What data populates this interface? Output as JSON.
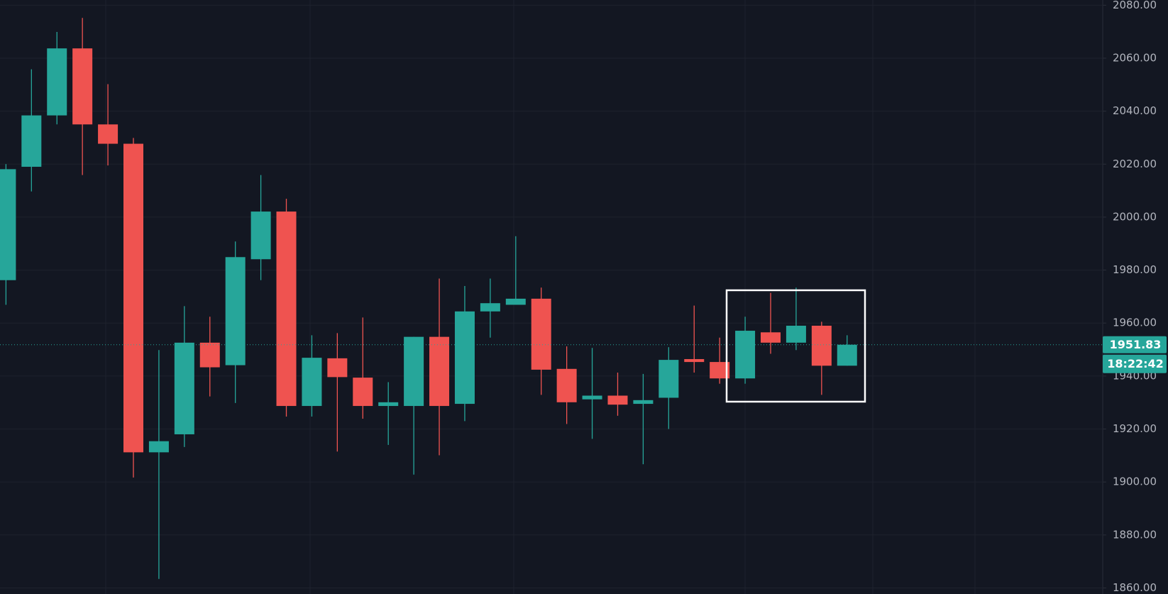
{
  "chart_data": {
    "type": "candlestick",
    "open": [
      1976.2,
      2019.0,
      2038.4,
      2063.7,
      2035.0,
      2027.7,
      1911.2,
      1918.0,
      1952.6,
      1944.1,
      1984.1,
      2002.1,
      1928.7,
      1946.7,
      1939.4,
      1928.7,
      1928.7,
      1954.8,
      1929.5,
      1964.4,
      1966.9,
      1969.2,
      1942.7,
      1931.2,
      1932.6,
      1929.5,
      1931.8,
      1946.4,
      1945.3,
      1939.1,
      1956.5,
      1952.6,
      1959.0,
      1943.9
    ],
    "high": [
      2020.0,
      2055.8,
      2069.9,
      2075.2,
      2050.2,
      2029.9,
      1949.8,
      1966.4,
      1962.4,
      1990.8,
      2015.9,
      2006.9,
      1955.4,
      1956.2,
      1962.1,
      1937.7,
      1954.8,
      1976.8,
      1974.0,
      1976.8,
      1992.8,
      1973.4,
      1951.2,
      1950.6,
      1941.3,
      1940.8,
      1950.9,
      1966.6,
      1954.5,
      1962.4,
      1971.4,
      1973.4,
      1960.5,
      1955.4
    ],
    "low": [
      1966.9,
      2009.7,
      2035.0,
      2015.9,
      2019.5,
      1901.7,
      1863.4,
      1913.2,
      1932.3,
      1929.8,
      1976.2,
      1924.7,
      1924.7,
      1911.5,
      1923.9,
      1914.0,
      1902.8,
      1910.1,
      1923.0,
      1954.5,
      1966.9,
      1932.9,
      1921.9,
      1916.3,
      1925.0,
      1906.7,
      1920.0,
      1941.3,
      1937.1,
      1937.1,
      1948.4,
      1949.8,
      1932.9,
      1943.9
    ],
    "close": [
      2018.1,
      2038.4,
      2063.7,
      2035.0,
      2027.7,
      1911.2,
      1915.4,
      1952.6,
      1943.3,
      1984.9,
      2002.1,
      1928.7,
      1946.9,
      1939.6,
      1928.7,
      1930.1,
      1954.8,
      1928.7,
      1964.4,
      1967.5,
      1969.2,
      1942.4,
      1930.1,
      1932.6,
      1929.2,
      1930.9,
      1946.1,
      1945.3,
      1939.1,
      1957.1,
      1952.6,
      1959.0,
      1943.9,
      1951.83
    ],
    "up_color": "#26a69a",
    "down_color": "#ef5350",
    "ylim": [
      1860,
      2080
    ],
    "yticks": [
      {
        "value": 1860,
        "label": "1860.00"
      },
      {
        "value": 1880,
        "label": "1880.00"
      },
      {
        "value": 1900,
        "label": "1900.00"
      },
      {
        "value": 1920,
        "label": "1920.00"
      },
      {
        "value": 1940,
        "label": "1940.00"
      },
      {
        "value": 1960,
        "label": "1960.00"
      },
      {
        "value": 1980,
        "label": "1980.00"
      },
      {
        "value": 2000,
        "label": "2000.00"
      },
      {
        "value": 2020,
        "label": "2020.00"
      },
      {
        "value": 2040,
        "label": "2040.00"
      },
      {
        "value": 2060,
        "label": "2060.00"
      },
      {
        "value": 2080,
        "label": "2080.00"
      }
    ],
    "grid": true,
    "last_price": 1951.83,
    "countdown": "18:22:42"
  }
}
